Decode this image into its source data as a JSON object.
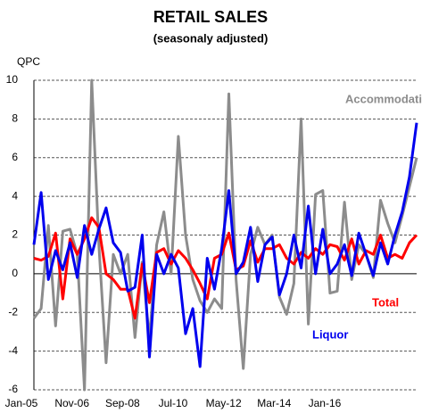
{
  "chart_data": {
    "type": "line",
    "title": "RETAIL SALES",
    "subtitle": "(seasonaly adjusted)",
    "y_label": "QPC",
    "categories": [
      "Jan-05",
      null,
      null,
      null,
      null,
      null,
      null,
      "Nov-06",
      null,
      null,
      null,
      null,
      null,
      null,
      "Sep-08",
      null,
      null,
      null,
      null,
      null,
      null,
      "Jul-10",
      null,
      null,
      null,
      null,
      null,
      null,
      "May-12",
      null,
      null,
      null,
      null,
      null,
      null,
      "Mar-14",
      null,
      null,
      null,
      null,
      null,
      null,
      "Jan-16",
      null,
      null,
      null,
      null,
      null,
      null,
      null,
      null,
      null,
      null,
      null
    ],
    "series": [
      {
        "name": "Accommodation",
        "color": "#8c8c8c",
        "values": [
          -2.3,
          -1.8,
          2.5,
          -2.7,
          2.2,
          2.3,
          1.0,
          -6.0,
          10.0,
          1.5,
          -4.6,
          1.0,
          0.0,
          1.0,
          -3.3,
          0.6,
          -3.4,
          1.5,
          3.2,
          0.0,
          7.1,
          2.0,
          -0.3,
          -1.4,
          -2.0,
          -1.3,
          -1.8,
          9.3,
          -0.3,
          -4.9,
          1.0,
          2.4,
          1.5,
          2.0,
          -1.2,
          -2.1,
          -0.5,
          8.0,
          -2.6,
          4.1,
          4.3,
          -1.0,
          -0.9,
          3.7,
          -0.3,
          1.5,
          1.0,
          -0.2,
          3.8,
          2.6,
          1.6,
          3.0,
          4.5,
          6.0
        ]
      },
      {
        "name": "Total",
        "color": "#ff0000",
        "values": [
          0.8,
          0.7,
          0.9,
          2.1,
          -1.3,
          1.8,
          1.0,
          1.8,
          2.9,
          2.4,
          0.0,
          -0.3,
          -0.8,
          -0.8,
          -2.3,
          0.5,
          -1.5,
          1.1,
          1.3,
          0.5,
          1.2,
          0.8,
          0.2,
          -0.5,
          -1.3,
          0.8,
          1.0,
          2.1,
          0.2,
          0.4,
          1.7,
          0.6,
          1.3,
          1.3,
          1.5,
          0.8,
          0.5,
          1.1,
          0.8,
          1.3,
          1.0,
          1.5,
          1.4,
          0.7,
          1.8,
          0.5,
          1.2,
          1.0,
          2.0,
          0.8,
          1.0,
          0.8,
          1.6,
          2.0
        ]
      },
      {
        "name": "Liquor",
        "color": "#0000ee",
        "values": [
          1.5,
          4.2,
          -0.3,
          1.2,
          0.2,
          1.6,
          -0.2,
          2.5,
          1.0,
          2.3,
          3.4,
          1.6,
          1.1,
          -0.9,
          -0.7,
          2.0,
          -4.3,
          1.0,
          0.0,
          1.0,
          0.3,
          -3.1,
          -1.8,
          -4.8,
          0.8,
          -0.8,
          1.3,
          4.3,
          0.0,
          0.6,
          2.4,
          -0.4,
          1.5,
          1.9,
          -1.1,
          0.0,
          2.0,
          0.3,
          3.5,
          0.0,
          2.3,
          0.0,
          0.5,
          1.5,
          -0.1,
          2.1,
          1.0,
          -0.1,
          1.6,
          0.5,
          2.0,
          3.2,
          5.0,
          7.8
        ]
      }
    ],
    "ylim": [
      -6,
      10
    ],
    "yticks": [
      -6,
      -4,
      -2,
      0,
      2,
      4,
      6,
      8,
      10
    ],
    "grid": true
  }
}
